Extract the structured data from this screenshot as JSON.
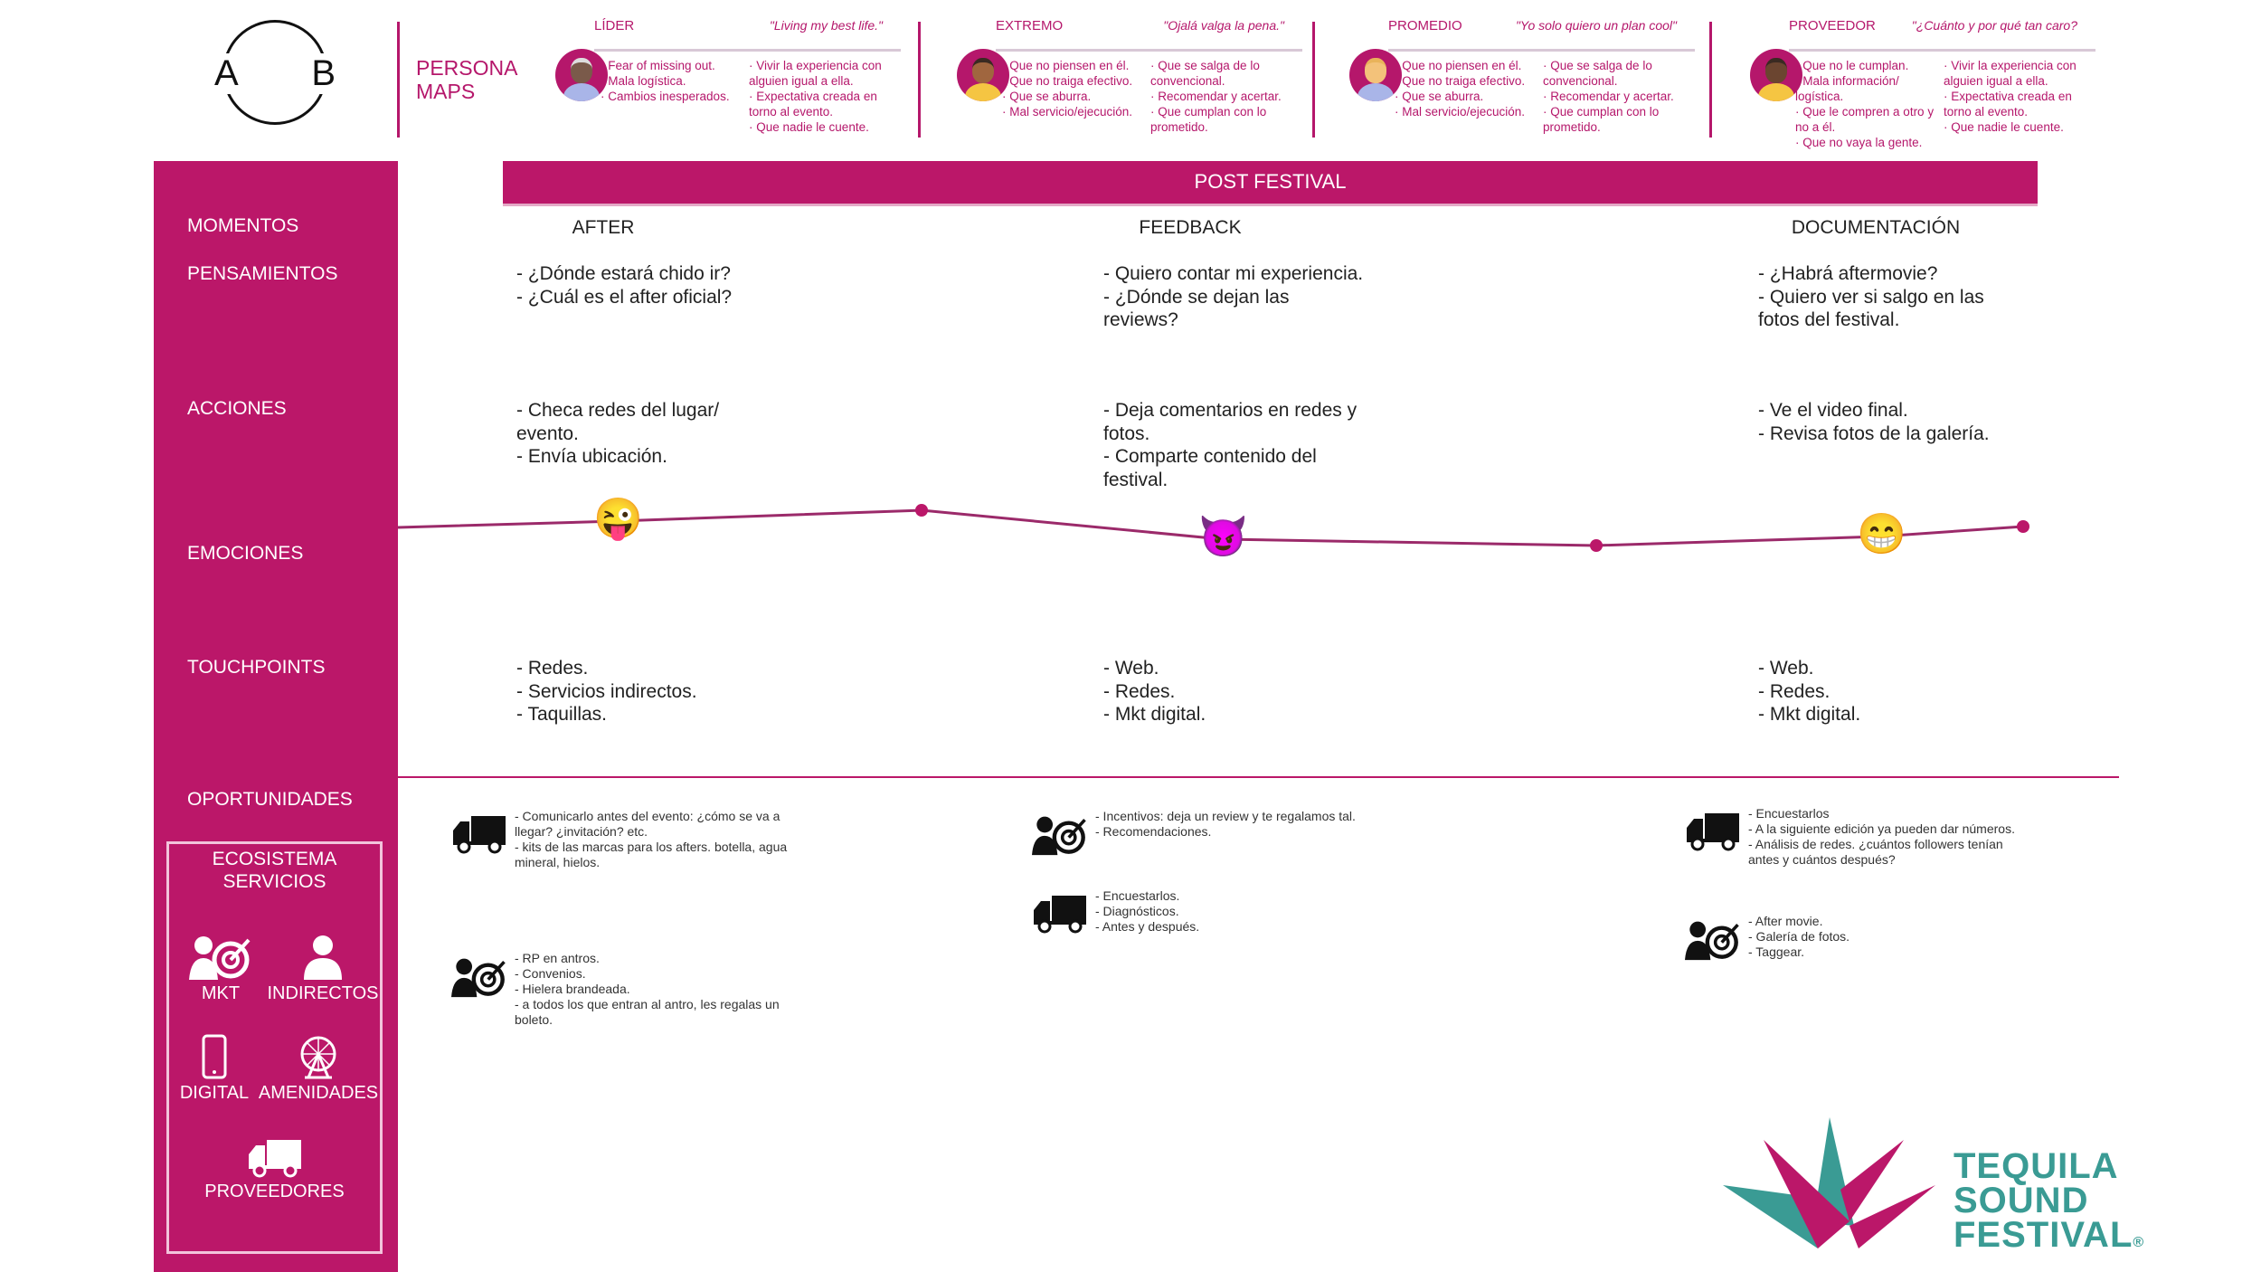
{
  "logo": {
    "left_letter": "A",
    "right_letter": "B"
  },
  "persona_maps": {
    "title": "PERSONA MAPS",
    "personas": [
      {
        "name": "LÍDER",
        "quote": "\"Living my best life.\"",
        "col1": [
          "· Fear of missing out.",
          "· Mala logística.",
          "· Cambios inesperados."
        ],
        "col2": [
          "· Vivir la experiencia con alguien igual a ella.",
          "· Expectativa creada en torno al evento.",
          "· Que nadie le cuente."
        ]
      },
      {
        "name": "EXTREMO",
        "quote": "\"Ojalá valga la pena.\"",
        "col1": [
          "· Que no piensen en él.",
          "· Que no traiga efectivo.",
          "· Que se aburra.",
          "· Mal servicio/ejecución."
        ],
        "col2": [
          "· Que se salga de lo convencional.",
          "· Recomendar y acertar.",
          "· Que cumplan con lo prometido."
        ]
      },
      {
        "name": "PROMEDIO",
        "quote": "\"Yo solo quiero un plan cool\"",
        "col1": [
          "· Que no piensen en él.",
          "· Que no traiga efectivo.",
          "· Que se aburra.",
          "· Mal servicio/ejecución."
        ],
        "col2": [
          "· Que se salga de lo convencional.",
          "· Recomendar y acertar.",
          "· Que cumplan con lo prometido."
        ]
      },
      {
        "name": "PROVEEDOR",
        "quote": "\"¿Cuánto y por qué tan caro?",
        "col1": [
          "· Que no le cumplan.",
          "· Mala información/ logística.",
          "· Que le compren a otro y no a él.",
          "· Que no vaya la gente."
        ],
        "col2": [
          "· Vivir la experiencia con alguien igual a ella.",
          "· Expectativa creada en torno al evento.",
          "· Que nadie le cuente."
        ]
      }
    ]
  },
  "stage": "POST FESTIVAL",
  "row_labels": {
    "momentos": "MOMENTOS",
    "pensamientos": "PENSAMIENTOS",
    "acciones": "ACCIONES",
    "emociones": "EMOCIONES",
    "touchpoints": "TOUCHPOINTS",
    "oportunidades": "OPORTUNIDADES"
  },
  "moments": [
    {
      "name": "AFTER",
      "pensamientos": "- ¿Dónde estará chido ir?\n- ¿Cuál es el after oficial?",
      "acciones": "- Checa redes del lugar/ evento.\n- Envía ubicación.",
      "emotion": "😜",
      "touchpoints": "- Redes.\n- Servicios indirectos.\n- Taquillas.",
      "oportunidades": [
        {
          "icon": "truck-icon",
          "text": "- Comunicarlo antes del evento: ¿cómo se va a llegar? ¿invitación? etc.\n- kits de las marcas para los afters. botella, agua mineral, hielos."
        },
        {
          "icon": "marketing-target-icon",
          "text": "- RP en antros.\n- Convenios.\n- Hielera brandeada.\n- a todos los que entran al antro, les regalas un boleto."
        }
      ]
    },
    {
      "name": "FEEDBACK",
      "pensamientos": "- Quiero contar mi experiencia.\n- ¿Dónde se dejan las reviews?",
      "acciones": "- Deja comentarios en redes y fotos.\n- Comparte contenido del festival.",
      "emotion": "😈",
      "touchpoints": "- Web.\n- Redes.\n- Mkt digital.",
      "oportunidades": [
        {
          "icon": "marketing-target-icon",
          "text": "- Incentivos: deja un review y te regalamos tal.\n- Recomendaciones."
        },
        {
          "icon": "truck-icon",
          "text": "- Encuestarlos.\n- Diagnósticos.\n- Antes y después."
        }
      ]
    },
    {
      "name": "DOCUMENTACIÓN",
      "pensamientos": "- ¿Habrá aftermovie?\n- Quiero ver si salgo en las fotos del festival.",
      "acciones": "- Ve el video final.\n- Revisa fotos de la galería.",
      "emotion": "😁",
      "touchpoints": "- Web.\n- Redes.\n- Mkt digital.",
      "oportunidades": [
        {
          "icon": "truck-icon",
          "text": "- Encuestarlos\n- A la siguiente edición ya pueden dar números.\n- Análisis de redes. ¿cuántos followers tenían antes y cuántos después?"
        },
        {
          "icon": "marketing-target-icon",
          "text": "- After movie.\n- Galería de fotos.\n- Taggear."
        }
      ]
    }
  ],
  "ecosystem": {
    "title": "ECOSISTEMA SERVICIOS",
    "items": [
      {
        "label": "MKT",
        "icon": "marketing-target-icon"
      },
      {
        "label": "INDIRECTOS",
        "icon": "person-icon"
      },
      {
        "label": "DIGITAL",
        "icon": "smartphone-icon"
      },
      {
        "label": "AMENIDADES",
        "icon": "ferris-wheel-icon"
      },
      {
        "label": "PROVEEDORES",
        "icon": "truck-icon"
      }
    ]
  },
  "brand": {
    "line1": "TEQUILA",
    "line2": "SOUND",
    "line3": "FESTIVAL",
    "mark": "®"
  },
  "colors": {
    "accent": "#bb1769",
    "teal": "#3a9b94",
    "text": "#222222"
  }
}
